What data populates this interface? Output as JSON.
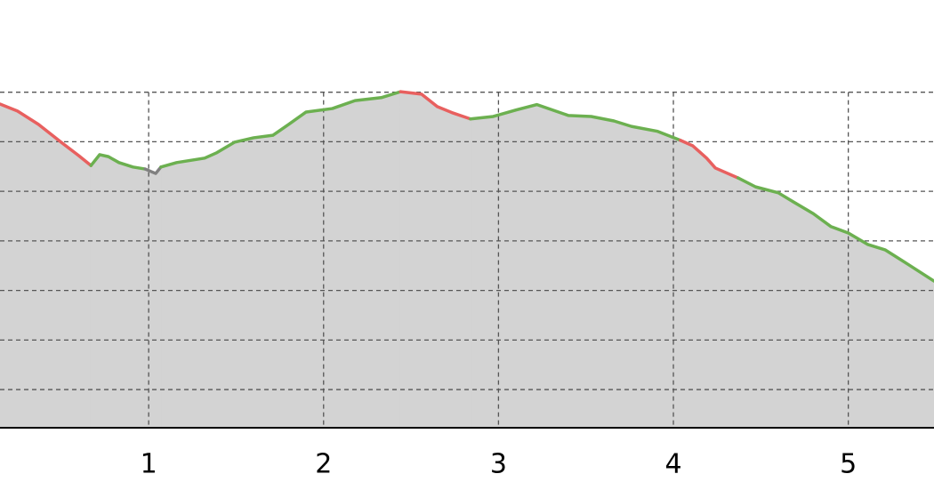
{
  "chart_data": {
    "type": "area",
    "xlim": [
      0.15,
      5.49
    ],
    "xticks": [
      1,
      2,
      3,
      4,
      5
    ],
    "ylim": [
      0.23,
      8.86
    ],
    "yticks": [
      1,
      2,
      3,
      4,
      5,
      6,
      7
    ],
    "grid": true,
    "fill_color": "#d3d3d3",
    "series": [
      {
        "color": "#e8605f",
        "x": [
          0.15,
          0.25,
          0.37,
          0.5,
          0.6,
          0.67
        ],
        "values": [
          6.76,
          6.62,
          6.35,
          5.99,
          5.72,
          5.52
        ]
      },
      {
        "color": "#6cb050",
        "x": [
          0.67,
          0.72,
          0.77,
          0.83,
          0.91,
          0.98
        ],
        "values": [
          5.52,
          5.74,
          5.7,
          5.58,
          5.49,
          5.45
        ]
      },
      {
        "color": "#808080",
        "x": [
          0.98,
          1.04,
          1.07
        ],
        "values": [
          5.45,
          5.36,
          5.49
        ]
      },
      {
        "color": "#6cb050",
        "x": [
          1.07,
          1.16,
          1.32,
          1.39,
          1.49,
          1.6,
          1.71,
          1.8,
          1.9,
          2.05,
          2.18,
          2.33,
          2.44
        ],
        "values": [
          5.49,
          5.58,
          5.67,
          5.78,
          5.99,
          6.08,
          6.13,
          6.35,
          6.6,
          6.67,
          6.83,
          6.89,
          7.01
        ]
      },
      {
        "color": "#e8605f",
        "x": [
          2.44,
          2.56,
          2.65,
          2.74,
          2.84
        ],
        "values": [
          7.01,
          6.96,
          6.71,
          6.58,
          6.46
        ]
      },
      {
        "color": "#6cb050",
        "x": [
          2.84,
          2.97,
          3.1,
          3.22,
          3.4,
          3.53,
          3.66,
          3.76,
          3.91,
          4.04
        ],
        "values": [
          6.46,
          6.51,
          6.64,
          6.75,
          6.53,
          6.51,
          6.42,
          6.31,
          6.21,
          6.03
        ]
      },
      {
        "color": "#e8605f",
        "x": [
          4.04,
          4.11,
          4.19,
          4.24,
          4.37
        ],
        "values": [
          6.03,
          5.92,
          5.67,
          5.47,
          5.27
        ]
      },
      {
        "color": "#6cb050",
        "x": [
          4.37,
          4.47,
          4.6,
          4.67,
          4.8,
          4.9,
          5.0,
          5.11,
          5.21,
          5.34,
          5.49
        ],
        "values": [
          5.27,
          5.09,
          4.97,
          4.82,
          4.55,
          4.29,
          4.16,
          3.93,
          3.82,
          3.53,
          3.19
        ]
      }
    ]
  }
}
